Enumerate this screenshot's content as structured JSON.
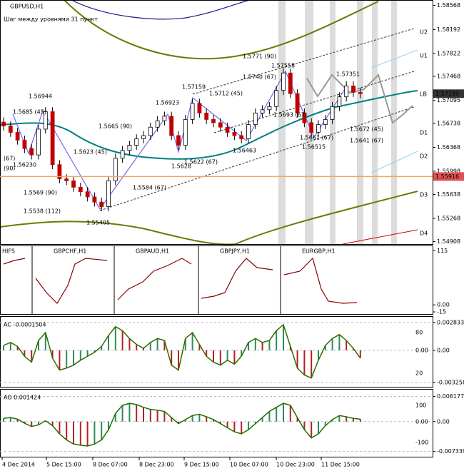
{
  "chart_data": [
    {
      "type": "candlestick",
      "title": "GBPUSD,H1",
      "subtitle": "Шаг между уровнями 31 пункт",
      "open": [
        1.5676,
        1.567,
        1.566,
        1.5648,
        1.5635,
        1.5625,
        1.5665,
        1.5692,
        1.561,
        1.5588,
        1.5585,
        1.5575,
        1.5568,
        1.556,
        1.5552,
        1.5545,
        1.5585,
        1.562,
        1.5632,
        1.564,
        1.565,
        1.5655,
        1.5668,
        1.5678,
        1.5685,
        1.5655,
        1.564,
        1.568,
        1.5705,
        1.569,
        1.568,
        1.5675,
        1.5668,
        1.566,
        1.5655,
        1.565,
        1.5672,
        1.569,
        1.5695,
        1.57,
        1.5725,
        1.5752,
        1.572,
        1.569,
        1.5675,
        1.566,
        1.5672,
        1.568,
        1.57,
        1.5715,
        1.5732,
        1.5722
      ],
      "high": [
        1.5683,
        1.5677,
        1.5667,
        1.5655,
        1.5642,
        1.5672,
        1.5699,
        1.5699,
        1.5617,
        1.5595,
        1.5592,
        1.5582,
        1.5575,
        1.5567,
        1.5559,
        1.5592,
        1.5627,
        1.5639,
        1.5647,
        1.5657,
        1.5662,
        1.5675,
        1.5685,
        1.5692,
        1.5692,
        1.5662,
        1.5687,
        1.5712,
        1.5712,
        1.5697,
        1.5687,
        1.5682,
        1.5675,
        1.5667,
        1.5662,
        1.5679,
        1.5697,
        1.5702,
        1.5707,
        1.5732,
        1.5759,
        1.5759,
        1.5727,
        1.5697,
        1.5682,
        1.5679,
        1.5687,
        1.5707,
        1.5722,
        1.5739,
        1.5739,
        1.5729
      ],
      "low": [
        1.5663,
        1.5653,
        1.5641,
        1.5628,
        1.5618,
        1.5618,
        1.5658,
        1.5603,
        1.5581,
        1.5578,
        1.5568,
        1.5561,
        1.5553,
        1.5545,
        1.5538,
        1.5538,
        1.5578,
        1.5613,
        1.5625,
        1.5633,
        1.5643,
        1.5648,
        1.5661,
        1.5671,
        1.5648,
        1.5633,
        1.5633,
        1.5673,
        1.5683,
        1.5673,
        1.5668,
        1.5661,
        1.5653,
        1.5648,
        1.5643,
        1.5643,
        1.5665,
        1.5683,
        1.5688,
        1.5693,
        1.5718,
        1.5713,
        1.5683,
        1.5668,
        1.5653,
        1.5653,
        1.5665,
        1.5673,
        1.5693,
        1.5708,
        1.5715,
        1.5713
      ],
      "close": [
        1.567,
        1.566,
        1.5648,
        1.5635,
        1.5625,
        1.5665,
        1.5692,
        1.561,
        1.5588,
        1.5585,
        1.5575,
        1.5568,
        1.556,
        1.5552,
        1.5545,
        1.5585,
        1.562,
        1.5632,
        1.564,
        1.565,
        1.5655,
        1.5668,
        1.5678,
        1.5685,
        1.5655,
        1.564,
        1.568,
        1.5705,
        1.569,
        1.568,
        1.5675,
        1.5668,
        1.566,
        1.5655,
        1.565,
        1.5672,
        1.569,
        1.5695,
        1.57,
        1.5725,
        1.5752,
        1.572,
        1.569,
        1.5675,
        1.566,
        1.5672,
        1.568,
        1.57,
        1.5715,
        1.5732,
        1.5722,
        1.572
      ],
      "up_color": "#ffffff",
      "down_color": "#c00000",
      "ylim": [
        1.5487,
        1.5865
      ],
      "yticks": [
        1.58568,
        1.58192,
        1.57822,
        1.57468,
        1.57095,
        1.56738,
        1.56368,
        1.55998,
        1.55638,
        1.55268,
        1.54908
      ],
      "last_price": 1.57199,
      "level_price": 1.55916,
      "level_color": "#f4a460",
      "levels": [
        {
          "label": "U2",
          "value": 1.58153
        },
        {
          "label": "U1",
          "value": 1.57788
        },
        {
          "label": "LB",
          "value": 1.57191
        },
        {
          "label": "D1",
          "value": 1.56594
        },
        {
          "label": "D2",
          "value": 1.5623
        },
        {
          "label": "D3",
          "value": 1.55633
        },
        {
          "label": "D4",
          "value": 1.55036
        }
      ],
      "annotations": [
        "1.56944",
        "1.5685 (45)",
        "1.56230",
        "(67)",
        "(90)",
        "1.5623 (45)",
        "1.5569 (90)",
        "1.5538 (112)",
        "1.55405",
        "1.5665 (90)",
        "1.56923",
        "1.5628",
        "1.5622 (67)",
        "1.5584 (67)",
        "1.57159",
        "1.5712 (45)",
        "1.56463",
        "1.5771 (90)",
        "1.5740 (67)",
        "1.57558",
        "1.5693 (67)",
        "1.5661 (67)",
        "1.56515",
        "1.57351",
        "1.5672 (45)",
        "1.5641 (67)"
      ]
    },
    {
      "type": "mini-charts",
      "labels": [
        "HIFS",
        "GBPCHF,H1",
        "GBPAUD,H1",
        "GBPJPY,H1",
        "EURGBP,H1"
      ],
      "ylim": [
        -21,
        126
      ],
      "yticks": [
        115,
        {
          "value": 0,
          "label": "0.00"
        },
        -15
      ]
    },
    {
      "type": "histogram",
      "title": "AC -0.0001504",
      "values": [
        0.0005,
        0.0008,
        0.0004,
        -0.0006,
        -0.0012,
        0.001,
        0.0018,
        -0.0008,
        -0.002,
        -0.0018,
        -0.0015,
        -0.001,
        -0.0006,
        -0.0002,
        0.0004,
        0.0015,
        0.0024,
        0.002,
        0.0012,
        0.0006,
        0.0002,
        0.0008,
        0.0012,
        0.001,
        -0.0015,
        -0.002,
        0.0012,
        0.0018,
        0.0006,
        -0.0006,
        -0.0012,
        -0.0015,
        -0.001,
        -0.0014,
        -0.0006,
        0.0008,
        0.0012,
        0.0008,
        0.001,
        0.002,
        0.0026,
        0.0004,
        -0.0018,
        -0.0025,
        -0.0028,
        -0.001,
        0.0005,
        0.0012,
        0.0016,
        0.001,
        0.0002,
        -0.0008
      ],
      "ylim": [
        -0.00355,
        0.00325
      ],
      "yticks": [
        0.002833,
        {
          "value": 0,
          "label": "0.00"
        },
        -0.003258
      ],
      "overlay_labels": [
        "80",
        "0.00",
        "20"
      ],
      "up_color": "#2e8b57",
      "down_color": "#b22222",
      "line_color": "#2f6b00"
    },
    {
      "type": "histogram",
      "title": "AO 0.001424",
      "values": [
        0.0008,
        0.001,
        0.0006,
        -0.0004,
        -0.0012,
        -0.0008,
        0.0002,
        -0.001,
        -0.003,
        -0.0045,
        -0.0055,
        -0.0058,
        -0.006,
        -0.0055,
        -0.0045,
        -0.002,
        0.002,
        0.004,
        0.0045,
        0.0042,
        0.0035,
        0.003,
        0.0028,
        0.0025,
        0.001,
        -0.0005,
        0.0005,
        0.0015,
        0.0018,
        0.0012,
        0.0005,
        -0.0005,
        -0.0015,
        -0.0025,
        -0.003,
        -0.002,
        -0.0005,
        0.001,
        0.0025,
        0.0035,
        0.0045,
        0.004,
        0.001,
        -0.002,
        -0.004,
        -0.003,
        -0.001,
        0.0005,
        0.0015,
        0.0012,
        0.0008,
        0.0006
      ],
      "ylim": [
        -0.0081,
        0.0075
      ],
      "yticks": [
        0.006177,
        {
          "value": 0,
          "label": "0.00"
        },
        -0.007339
      ],
      "overlay_labels": [
        "100",
        "0.00",
        "-100"
      ],
      "up_color": "#2e8b57",
      "down_color": "#b22222",
      "line_color": "#1f6f00"
    }
  ],
  "time_axis": [
    "4 Dec 2014",
    "5 Dec 15:00",
    "8 Dec 07:00",
    "8 Dec 23:00",
    "9 Dec 15:00",
    "10 Dec 07:00",
    "10 Dec 23:00",
    "11 Dec 15:00"
  ]
}
